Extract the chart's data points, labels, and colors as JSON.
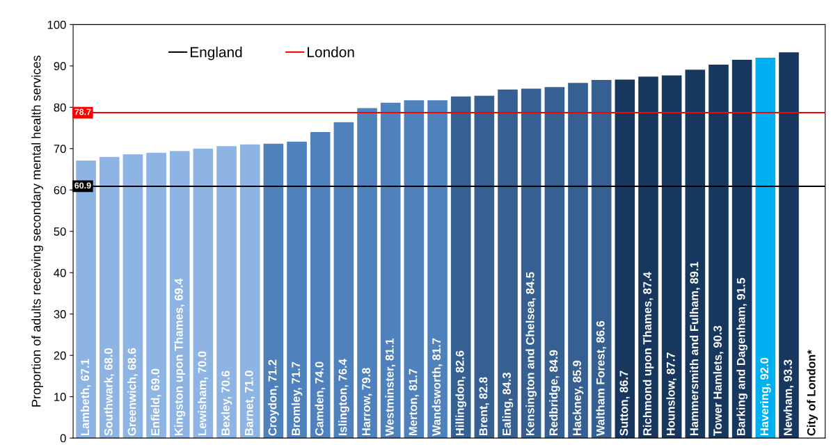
{
  "chart_data": {
    "type": "bar",
    "ylabel": "Proportion of adults receiving secondary mental health services",
    "categories": [
      "Lambeth, 67.1",
      "Southwark, 68.0",
      "Greenwich, 68.6",
      "Enfield, 69.0",
      "Kingston upon Thames, 69.4",
      "Lewisham, 70.0",
      "Bexley, 70.6",
      "Barnet, 71.0",
      "Croydon, 71.2",
      "Bromley, 71.7",
      "Camden, 74.0",
      "Islington, 76.4",
      "Harrow, 79.8",
      "Westminster, 81.1",
      "Merton, 81.7",
      "Wandsworth, 81.7",
      "Hillingdon, 82.6",
      "Brent, 82.8",
      "Ealing, 84.3",
      "Kensington and Chelsea, 84.5",
      "Redbridge, 84.9",
      "Hackney, 85.9",
      "Waltham Forest, 86.6",
      "Sutton, 86.7",
      "Richmond upon Thames, 87.4",
      "Hounslow, 87.7",
      "Hammersmith and Fulham, 89.1",
      "Tower Hamlets, 90.3",
      "Barking and Dagenham, 91.5",
      "Havering, 92.0",
      "Newham, 93.3",
      "City of London*"
    ],
    "values": [
      67.1,
      68.0,
      68.6,
      69.0,
      69.4,
      70.0,
      70.6,
      71.0,
      71.2,
      71.7,
      74.0,
      76.4,
      79.8,
      81.1,
      81.7,
      81.7,
      82.6,
      82.8,
      84.3,
      84.5,
      84.9,
      85.9,
      86.6,
      86.7,
      87.4,
      87.7,
      89.1,
      90.3,
      91.5,
      92.0,
      93.3,
      null
    ],
    "colors": [
      "#8db4e2",
      "#8db4e2",
      "#8db4e2",
      "#8db4e2",
      "#8db4e2",
      "#8db4e2",
      "#8db4e2",
      "#8db4e2",
      "#4f81bd",
      "#4f81bd",
      "#4f81bd",
      "#4f81bd",
      "#4f81bd",
      "#4f81bd",
      "#4f81bd",
      "#4f81bd",
      "#366092",
      "#366092",
      "#366092",
      "#366092",
      "#366092",
      "#366092",
      "#366092",
      "#17375e",
      "#17375e",
      "#17375e",
      "#17375e",
      "#17375e",
      "#17375e",
      "#00b0f0",
      "#17375e",
      "#17375e"
    ],
    "ylim": [
      0,
      100
    ],
    "yticks": [
      0,
      10,
      20,
      30,
      40,
      50,
      60,
      70,
      80,
      90,
      100
    ],
    "ref_lines": [
      {
        "axis": "y",
        "value": 60.9,
        "label": "England",
        "color": "#000000"
      },
      {
        "axis": "y",
        "value": 78.7,
        "label": "London",
        "color": "#ff0000"
      }
    ],
    "annotations": [
      {
        "text": "60.9",
        "y": 60.9
      },
      {
        "text": "78.7",
        "y": 78.7
      }
    ],
    "legend": "top left",
    "grid": false
  }
}
